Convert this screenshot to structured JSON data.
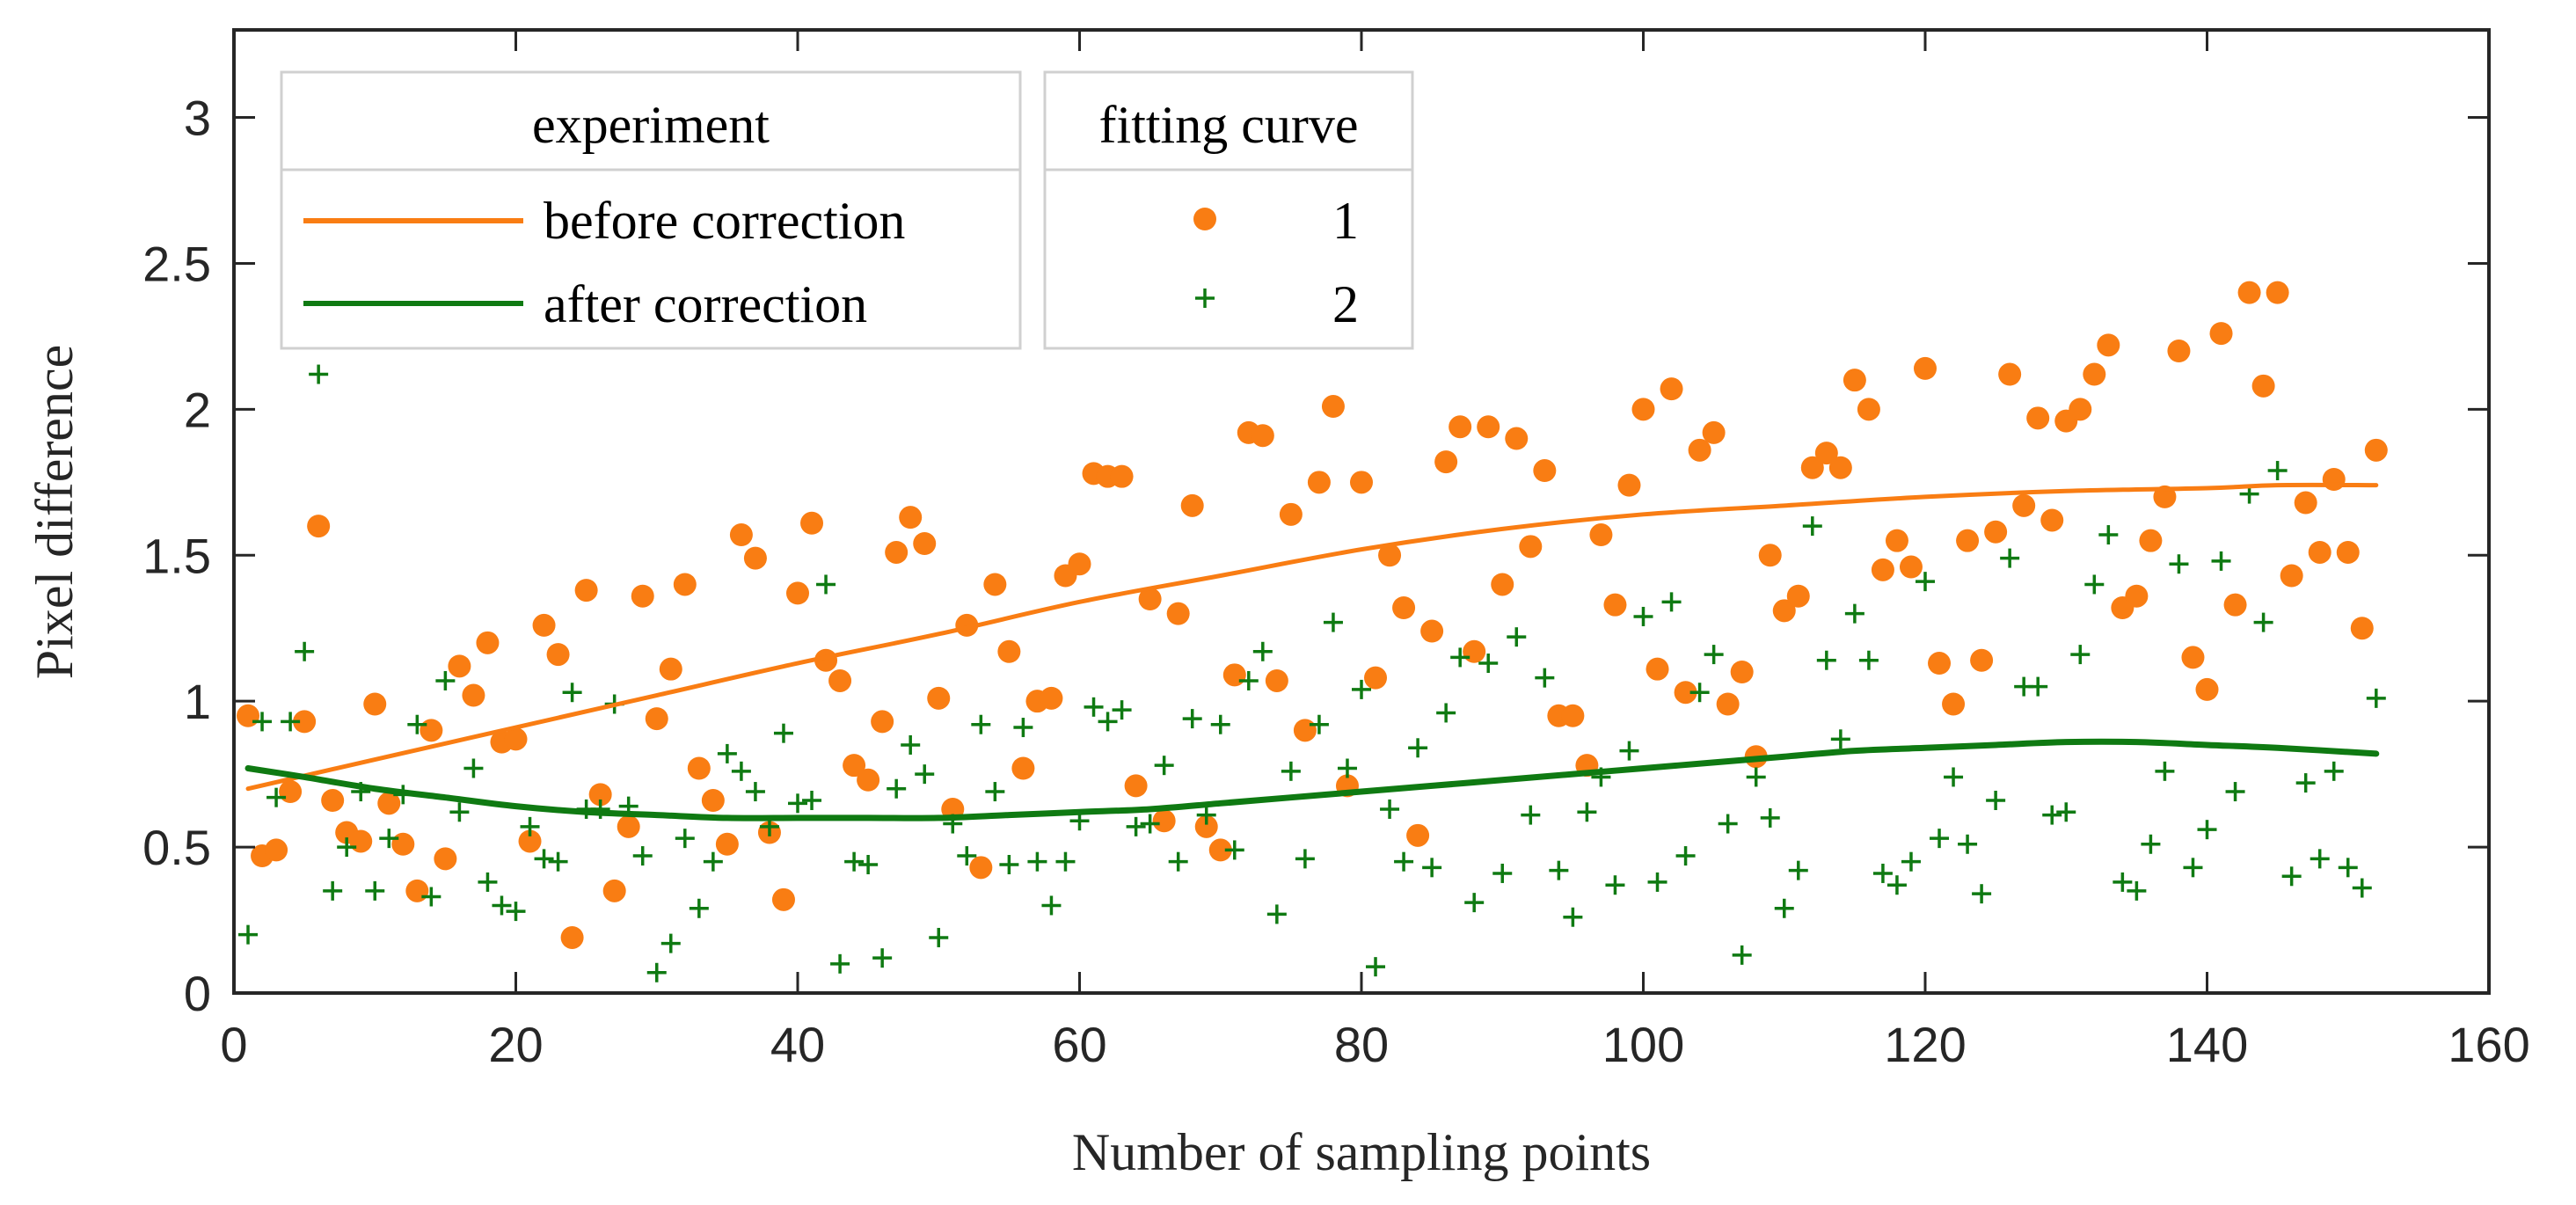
{
  "chart_data": {
    "type": "scatter",
    "title": "",
    "xlabel": "Number of sampling points",
    "ylabel": "Pixel difference",
    "xlim": [
      0,
      160
    ],
    "ylim": [
      0,
      3.3
    ],
    "xticks": [
      0,
      20,
      40,
      60,
      80,
      100,
      120,
      140,
      160
    ],
    "xtick_labels": [
      "0",
      "20",
      "40",
      "60",
      "80",
      "100",
      "120",
      "140",
      "160"
    ],
    "yticks": [
      0,
      0.5,
      1,
      1.5,
      2,
      2.5,
      3
    ],
    "ytick_labels": [
      "0",
      "0.5",
      "1",
      "1.5",
      "2",
      "2.5",
      "3"
    ],
    "grid": false,
    "legend": {
      "placement": "top-left",
      "group1_header": "experiment",
      "group2_header": "fitting curve",
      "entries": [
        {
          "label": "before correction",
          "marker_label": "1",
          "color": "#F97D13"
        },
        {
          "label": "after correction",
          "marker_label": "2",
          "color": "#0F7A12"
        }
      ]
    },
    "series": [
      {
        "name": "1",
        "kind": "scatter",
        "marker": "circle",
        "color": "#F97D13",
        "x": [
          1,
          2,
          3,
          4,
          5,
          6,
          7,
          8,
          9,
          10,
          11,
          12,
          13,
          14,
          15,
          16,
          17,
          18,
          19,
          20,
          21,
          22,
          23,
          24,
          25,
          26,
          27,
          28,
          29,
          30,
          31,
          32,
          33,
          34,
          35,
          36,
          37,
          38,
          39,
          40,
          41,
          42,
          43,
          44,
          45,
          46,
          47,
          48,
          49,
          50,
          51,
          52,
          53,
          54,
          55,
          56,
          57,
          58,
          59,
          60,
          61,
          62,
          63,
          64,
          65,
          66,
          67,
          68,
          69,
          70,
          71,
          72,
          73,
          74,
          75,
          76,
          77,
          78,
          79,
          80,
          81,
          82,
          83,
          84,
          85,
          86,
          87,
          88,
          89,
          90,
          91,
          92,
          93,
          94,
          95,
          96,
          97,
          98,
          99,
          100,
          101,
          102,
          103,
          104,
          105,
          106,
          107,
          108,
          109,
          110,
          111,
          112,
          113,
          114,
          115,
          116,
          117,
          118,
          119,
          120,
          121,
          122,
          123,
          124,
          125,
          126,
          127,
          128,
          129,
          130,
          131,
          132,
          133,
          134,
          135,
          136,
          137,
          138,
          139,
          140,
          141,
          142,
          143,
          144,
          145,
          146,
          147,
          148,
          149,
          150,
          151,
          152
        ],
        "y": [
          0.95,
          0.47,
          0.49,
          0.69,
          0.93,
          1.6,
          0.66,
          0.55,
          0.52,
          0.99,
          0.65,
          0.51,
          0.35,
          0.9,
          0.46,
          1.12,
          1.02,
          1.2,
          0.86,
          0.87,
          0.52,
          1.26,
          1.16,
          0.19,
          1.38,
          0.68,
          0.35,
          0.57,
          1.36,
          0.94,
          1.11,
          1.4,
          0.77,
          0.66,
          0.51,
          1.57,
          1.49,
          0.55,
          0.32,
          1.37,
          1.61,
          1.14,
          1.07,
          0.78,
          0.73,
          0.93,
          1.51,
          1.63,
          1.54,
          1.01,
          0.63,
          1.26,
          0.43,
          1.4,
          1.17,
          0.77,
          1.0,
          1.01,
          1.43,
          1.47,
          1.78,
          1.77,
          1.77,
          0.71,
          1.35,
          0.59,
          1.3,
          1.67,
          0.57,
          0.49,
          1.09,
          1.92,
          1.91,
          1.07,
          1.64,
          0.9,
          1.75,
          2.01,
          0.71,
          1.75,
          1.08,
          1.5,
          1.32,
          0.54,
          1.24,
          1.82,
          1.94,
          1.17,
          1.94,
          1.4,
          1.9,
          1.53,
          1.79,
          0.95,
          0.95,
          0.78,
          1.57,
          1.33,
          1.74,
          2.0,
          1.11,
          2.07,
          1.03,
          1.86,
          1.92,
          0.99,
          1.1,
          0.81,
          1.5,
          1.31,
          1.36,
          1.8,
          1.85,
          1.8,
          2.1,
          2.0,
          1.45,
          1.55,
          1.46,
          2.14,
          1.13,
          0.99,
          1.55,
          1.14,
          1.58,
          2.12,
          1.67,
          1.97,
          1.62,
          1.96,
          2.0,
          2.12,
          2.22,
          1.32,
          1.36,
          1.55,
          1.7,
          2.2,
          1.15,
          1.04,
          2.26,
          1.33,
          2.4,
          2.08,
          2.4,
          1.43,
          1.68,
          1.51,
          1.76,
          1.51,
          1.25,
          1.86
        ]
      },
      {
        "name": "2",
        "kind": "scatter",
        "marker": "plus",
        "color": "#0F7A12",
        "x": [
          1,
          2,
          3,
          4,
          5,
          6,
          7,
          8,
          9,
          10,
          11,
          12,
          13,
          14,
          15,
          16,
          17,
          18,
          19,
          20,
          21,
          22,
          23,
          24,
          25,
          26,
          27,
          28,
          29,
          30,
          31,
          32,
          33,
          34,
          35,
          36,
          37,
          38,
          39,
          40,
          41,
          42,
          43,
          44,
          45,
          46,
          47,
          48,
          49,
          50,
          51,
          52,
          53,
          54,
          55,
          56,
          57,
          58,
          59,
          60,
          61,
          62,
          63,
          64,
          65,
          66,
          67,
          68,
          69,
          70,
          71,
          72,
          73,
          74,
          75,
          76,
          77,
          78,
          79,
          80,
          81,
          82,
          83,
          84,
          85,
          86,
          87,
          88,
          89,
          90,
          91,
          92,
          93,
          94,
          95,
          96,
          97,
          98,
          99,
          100,
          101,
          102,
          103,
          104,
          105,
          106,
          107,
          108,
          109,
          110,
          111,
          112,
          113,
          114,
          115,
          116,
          117,
          118,
          119,
          120,
          121,
          122,
          123,
          124,
          125,
          126,
          127,
          128,
          129,
          130,
          131,
          132,
          133,
          134,
          135,
          136,
          137,
          138,
          139,
          140,
          141,
          142,
          143,
          144,
          145,
          146,
          147,
          148,
          149,
          150,
          151,
          152
        ],
        "y": [
          0.2,
          0.93,
          0.67,
          0.93,
          1.17,
          2.12,
          0.35,
          0.5,
          0.69,
          0.35,
          0.53,
          0.68,
          0.92,
          0.33,
          1.07,
          0.62,
          0.77,
          0.38,
          0.3,
          0.28,
          0.57,
          0.46,
          0.45,
          1.03,
          0.63,
          0.63,
          0.99,
          0.64,
          0.47,
          0.07,
          0.17,
          0.53,
          0.29,
          0.45,
          0.82,
          0.76,
          0.69,
          0.57,
          0.89,
          0.65,
          0.66,
          1.4,
          0.1,
          0.45,
          0.44,
          0.12,
          0.7,
          0.85,
          0.75,
          0.19,
          0.58,
          0.47,
          0.92,
          0.69,
          0.44,
          0.91,
          0.45,
          0.3,
          0.45,
          0.59,
          0.98,
          0.93,
          0.97,
          0.57,
          0.58,
          0.78,
          0.45,
          0.94,
          0.61,
          0.92,
          0.49,
          1.07,
          1.17,
          0.27,
          0.76,
          0.46,
          0.92,
          1.27,
          0.77,
          1.04,
          0.09,
          0.63,
          0.45,
          0.84,
          0.43,
          0.96,
          1.15,
          0.31,
          1.13,
          0.41,
          1.22,
          0.61,
          1.08,
          0.42,
          0.26,
          0.62,
          0.74,
          0.37,
          0.83,
          1.29,
          0.38,
          1.34,
          0.47,
          1.03,
          1.16,
          0.58,
          0.13,
          0.74,
          0.6,
          0.29,
          0.42,
          1.6,
          1.14,
          0.87,
          1.3,
          1.14,
          0.41,
          0.37,
          0.45,
          1.41,
          0.53,
          0.74,
          0.51,
          0.34,
          0.66,
          1.49,
          1.05,
          1.05,
          0.61,
          0.62,
          1.16,
          1.4,
          1.57,
          0.38,
          0.35,
          0.51,
          0.76,
          1.47,
          0.43,
          0.56,
          1.48,
          0.69,
          1.71,
          1.27,
          1.79,
          0.4,
          0.72,
          0.46,
          0.76,
          0.43,
          0.36,
          1.01
        ]
      },
      {
        "name": "before correction",
        "kind": "line",
        "color": "#F97D13",
        "x": [
          1,
          10,
          20,
          30,
          40,
          50,
          60,
          70,
          80,
          90,
          100,
          110,
          120,
          130,
          140,
          145,
          152
        ],
        "y": [
          0.7,
          0.8,
          0.91,
          1.02,
          1.13,
          1.23,
          1.34,
          1.43,
          1.52,
          1.59,
          1.64,
          1.67,
          1.7,
          1.72,
          1.73,
          1.74,
          1.74
        ]
      },
      {
        "name": "after correction",
        "kind": "line",
        "color": "#0F7A12",
        "x": [
          1,
          5,
          10,
          15,
          20,
          25,
          30,
          35,
          40,
          45,
          50,
          55,
          60,
          65,
          70,
          75,
          80,
          85,
          90,
          95,
          100,
          105,
          110,
          115,
          120,
          125,
          130,
          135,
          140,
          145,
          152
        ],
        "y": [
          0.77,
          0.74,
          0.7,
          0.67,
          0.64,
          0.62,
          0.61,
          0.6,
          0.6,
          0.6,
          0.6,
          0.61,
          0.62,
          0.63,
          0.65,
          0.67,
          0.69,
          0.71,
          0.73,
          0.75,
          0.77,
          0.79,
          0.81,
          0.83,
          0.84,
          0.85,
          0.86,
          0.86,
          0.85,
          0.84,
          0.82
        ]
      }
    ]
  }
}
